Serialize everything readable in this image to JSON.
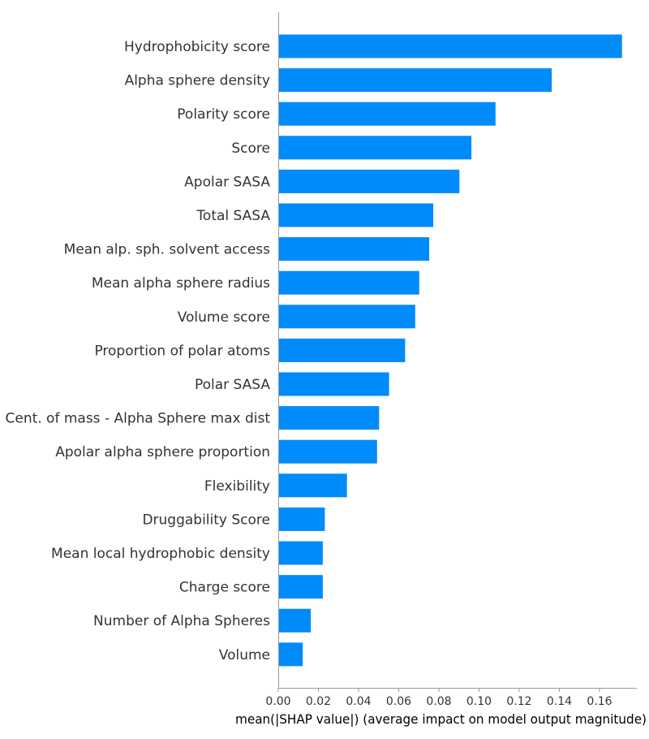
{
  "chart_data": {
    "type": "bar",
    "orientation": "horizontal",
    "categories": [
      "Hydrophobicity score",
      "Alpha sphere density",
      "Polarity score",
      "Score",
      "Apolar SASA",
      "Total SASA",
      "Mean alp. sph. solvent access",
      "Mean alpha sphere radius",
      "Volume score",
      "Proportion of polar atoms",
      "Polar SASA",
      "Cent. of mass - Alpha Sphere max dist",
      "Apolar alpha sphere proportion",
      "Flexibility",
      "Druggability Score",
      "Mean local hydrophobic density",
      "Charge score",
      "Number of Alpha Spheres",
      "Volume"
    ],
    "values": [
      0.171,
      0.136,
      0.108,
      0.096,
      0.09,
      0.077,
      0.075,
      0.07,
      0.068,
      0.063,
      0.055,
      0.05,
      0.049,
      0.034,
      0.023,
      0.022,
      0.022,
      0.016,
      0.012
    ],
    "xlabel": "mean(|SHAP value|) (average impact on model output magnitude)",
    "xlim": [
      0,
      0.18
    ],
    "xticks": [
      "0.00",
      "0.02",
      "0.04",
      "0.06",
      "0.08",
      "0.10",
      "0.12",
      "0.14",
      "0.16"
    ],
    "bar_color": "#008bfb",
    "grid": false,
    "legend": false
  }
}
